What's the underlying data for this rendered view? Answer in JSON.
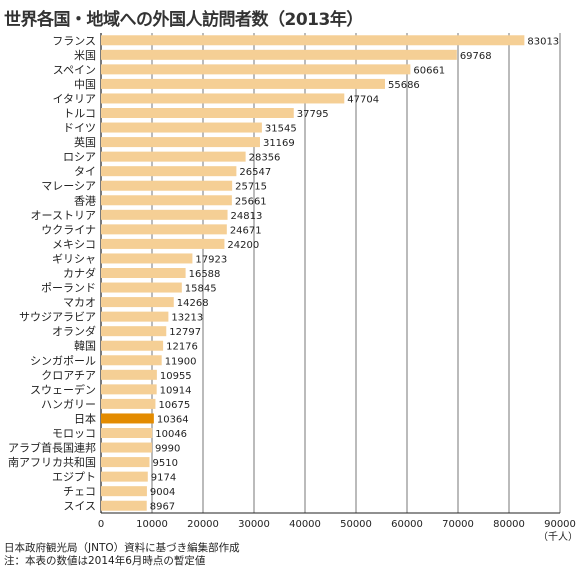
{
  "title": "世界各国・地域への外国人訪問者数（2013年）",
  "notes": [
    "日本政府観光局（JNTO）資料に基づき編集部作成",
    "注：本表の数値は2014年6月時点の暫定値"
  ],
  "colors": {
    "bar": "#f5cf95",
    "highlight": "#e38b00",
    "grid": "#555555",
    "axis": "#222222"
  },
  "chart_data": {
    "type": "bar",
    "orientation": "horizontal",
    "title": "世界各国・地域への外国人訪問者数（2013年）",
    "unit_label": "（千人）",
    "xlim": [
      0,
      90000
    ],
    "xticks": [
      0,
      10000,
      20000,
      30000,
      40000,
      50000,
      60000,
      70000,
      80000,
      90000
    ],
    "grid": true,
    "highlight_category": "日本",
    "categories": [
      "フランス",
      "米国",
      "スペイン",
      "中国",
      "イタリア",
      "トルコ",
      "ドイツ",
      "英国",
      "ロシア",
      "タイ",
      "マレーシア",
      "香港",
      "オーストリア",
      "ウクライナ",
      "メキシコ",
      "ギリシャ",
      "カナダ",
      "ポーランド",
      "マカオ",
      "サウジアラビア",
      "オランダ",
      "韓国",
      "シンガポール",
      "クロアチア",
      "スウェーデン",
      "ハンガリー",
      "日本",
      "モロッコ",
      "アラブ首長国連邦",
      "南アフリカ共和国",
      "エジプト",
      "チェコ",
      "スイス"
    ],
    "values": [
      83013,
      69768,
      60661,
      55686,
      47704,
      37795,
      31545,
      31169,
      28356,
      26547,
      25715,
      25661,
      24813,
      24671,
      24200,
      17923,
      16588,
      15845,
      14268,
      13213,
      12797,
      12176,
      11900,
      10955,
      10914,
      10675,
      10364,
      10046,
      9990,
      9510,
      9174,
      9004,
      8967
    ]
  }
}
